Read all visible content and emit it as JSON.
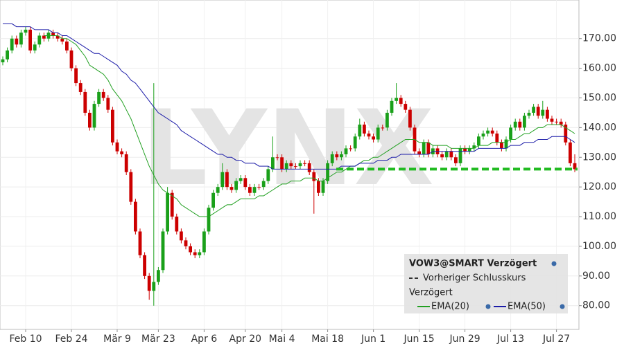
{
  "chart_data": {
    "type": "candlestick",
    "watermark": "LYNX",
    "categories": [
      null,
      null,
      null,
      null,
      null,
      "Feb 10",
      null,
      null,
      null,
      null,
      null,
      null,
      null,
      null,
      null,
      "Feb 24",
      null,
      null,
      null,
      null,
      null,
      null,
      null,
      null,
      null,
      "Mär 9",
      null,
      null,
      null,
      null,
      null,
      null,
      null,
      null,
      "Mär 23",
      null,
      null,
      null,
      null,
      null,
      null,
      null,
      null,
      null,
      "Apr 6",
      null,
      null,
      null,
      null,
      null,
      null,
      null,
      null,
      "Apr 20",
      null,
      null,
      null,
      null,
      null,
      null,
      null,
      "Mai 4",
      null,
      null,
      null,
      null,
      null,
      null,
      null,
      null,
      null,
      "Mai 18",
      null,
      null,
      null,
      null,
      null,
      null,
      null,
      null,
      null,
      "Jun 1",
      null,
      null,
      null,
      null,
      null,
      null,
      null,
      null,
      null,
      "Jun 15",
      null,
      null,
      null,
      null,
      null,
      null,
      null,
      null,
      null,
      "Jun 29",
      null,
      null,
      null,
      null,
      null,
      null,
      null,
      null,
      null,
      "Jul 13",
      null,
      null,
      null,
      null,
      null,
      null,
      null,
      null,
      null,
      "Jul 27",
      null,
      null,
      null,
      null
    ],
    "series": [
      {
        "name": "VOW3@SMART Verzögert",
        "up_color": "#1aa01a",
        "down_color": "#cc0000",
        "open": [
          162,
          163,
          166,
          170,
          168,
          172,
          173,
          166,
          168,
          171,
          170,
          172,
          171,
          170,
          169,
          166,
          160,
          155,
          152,
          145,
          140,
          148,
          152,
          150,
          146,
          135,
          132,
          131,
          125,
          115,
          105,
          97,
          90,
          85,
          88,
          92,
          105,
          118,
          110,
          105,
          102,
          100,
          98,
          97,
          98,
          105,
          113,
          118,
          120,
          125,
          120,
          119,
          122,
          123,
          120,
          118,
          120,
          120,
          122,
          126,
          130,
          130,
          126,
          128,
          127,
          127,
          128,
          128,
          125,
          122,
          118,
          122,
          128,
          131,
          130,
          131,
          133,
          133,
          137,
          141,
          138,
          137,
          136,
          140,
          140,
          145,
          149,
          150,
          148,
          146,
          140,
          132,
          131,
          135,
          131,
          133,
          131,
          130,
          132,
          130,
          128,
          133,
          132,
          133,
          134,
          137,
          138,
          139,
          138,
          135,
          133,
          136,
          140,
          142,
          140,
          144,
          145,
          147,
          144,
          146,
          143,
          142,
          142,
          141,
          135,
          128
        ],
        "high": [
          164,
          167,
          171,
          171,
          173,
          174,
          174,
          169,
          172,
          172,
          173,
          173,
          172,
          171,
          170,
          167,
          161,
          156,
          153,
          146,
          149,
          153,
          153,
          151,
          147,
          136,
          133,
          132,
          126,
          116,
          106,
          98,
          91,
          155,
          93,
          106,
          120,
          119,
          111,
          106,
          103,
          101,
          99,
          99,
          106,
          114,
          119,
          121,
          128,
          126,
          121,
          123,
          124,
          124,
          121,
          121,
          121,
          123,
          127,
          137,
          131,
          131,
          129,
          129,
          128,
          129,
          129,
          129,
          126,
          123,
          123,
          129,
          132,
          132,
          132,
          134,
          134,
          138,
          143,
          142,
          139,
          138,
          141,
          141,
          146,
          150,
          155,
          151,
          149,
          147,
          141,
          133,
          136,
          136,
          134,
          134,
          132,
          133,
          133,
          131,
          134,
          134,
          134,
          135,
          138,
          139,
          140,
          140,
          139,
          136,
          137,
          141,
          143,
          143,
          145,
          146,
          148,
          148,
          149,
          147,
          144,
          143,
          143,
          142,
          136,
          131
        ],
        "low": [
          161,
          162,
          165,
          167,
          167,
          171,
          165,
          165,
          167,
          169,
          169,
          170,
          169,
          168,
          165,
          159,
          154,
          151,
          144,
          139,
          139,
          147,
          149,
          145,
          134,
          131,
          130,
          124,
          114,
          104,
          96,
          89,
          82,
          80,
          87,
          91,
          104,
          109,
          104,
          101,
          99,
          97,
          96,
          96,
          97,
          104,
          112,
          117,
          119,
          119,
          118,
          118,
          121,
          119,
          117,
          117,
          119,
          119,
          121,
          125,
          129,
          125,
          125,
          126,
          126,
          126,
          127,
          124,
          111,
          117,
          117,
          121,
          127,
          129,
          129,
          130,
          132,
          132,
          136,
          137,
          136,
          135,
          135,
          139,
          139,
          144,
          148,
          147,
          145,
          139,
          131,
          130,
          130,
          130,
          130,
          130,
          129,
          129,
          129,
          127,
          127,
          131,
          131,
          132,
          133,
          136,
          137,
          137,
          134,
          132,
          132,
          135,
          139,
          139,
          139,
          143,
          144,
          143,
          143,
          142,
          141,
          141,
          140,
          134,
          127,
          125
        ],
        "close": [
          163,
          166,
          170,
          168,
          172,
          173,
          166,
          168,
          171,
          170,
          172,
          171,
          170,
          169,
          166,
          160,
          155,
          152,
          145,
          140,
          148,
          152,
          150,
          146,
          135,
          132,
          131,
          125,
          115,
          105,
          97,
          90,
          85,
          88,
          92,
          105,
          118,
          110,
          105,
          102,
          100,
          98,
          97,
          98,
          105,
          113,
          118,
          120,
          125,
          120,
          119,
          122,
          123,
          120,
          118,
          120,
          120,
          122,
          126,
          130,
          130,
          126,
          128,
          127,
          127,
          128,
          128,
          125,
          122,
          118,
          122,
          128,
          131,
          130,
          131,
          133,
          133,
          137,
          141,
          138,
          137,
          136,
          140,
          140,
          145,
          149,
          150,
          148,
          146,
          140,
          132,
          131,
          135,
          131,
          133,
          131,
          130,
          132,
          130,
          128,
          133,
          132,
          133,
          134,
          137,
          138,
          139,
          138,
          135,
          133,
          136,
          140,
          142,
          140,
          144,
          145,
          147,
          144,
          146,
          143,
          142,
          142,
          141,
          135,
          128,
          126
        ]
      },
      {
        "name": "EMA(20)",
        "color": "#22a022",
        "values": [
          null,
          null,
          null,
          null,
          null,
          null,
          null,
          null,
          null,
          171,
          171,
          171,
          171,
          170,
          170,
          169,
          168,
          166,
          164,
          161,
          160,
          159,
          158,
          156,
          153,
          151,
          149,
          146,
          143,
          139,
          135,
          131,
          127,
          124,
          121,
          119,
          118,
          117,
          116,
          114,
          113,
          112,
          111,
          110,
          110,
          110,
          111,
          112,
          113,
          114,
          114,
          115,
          116,
          116,
          116,
          116,
          117,
          117,
          118,
          119,
          120,
          121,
          121,
          122,
          122,
          122,
          123,
          123,
          123,
          122,
          122,
          123,
          124,
          125,
          125,
          126,
          127,
          127,
          128,
          129,
          129,
          130,
          130,
          131,
          132,
          133,
          134,
          135,
          136,
          136,
          136,
          135,
          135,
          135,
          134,
          134,
          134,
          134,
          133,
          133,
          133,
          133,
          133,
          133,
          134,
          134,
          134,
          135,
          135,
          135,
          135,
          136,
          136,
          137,
          138,
          138,
          139,
          140,
          140,
          141,
          141,
          141,
          141,
          140,
          139,
          138
        ]
      },
      {
        "name": "EMA(50)",
        "color": "#1c1ca8",
        "values": [
          175,
          175,
          175,
          174,
          174,
          174,
          174,
          173,
          173,
          173,
          173,
          172,
          172,
          171,
          171,
          170,
          169,
          168,
          167,
          166,
          165,
          165,
          164,
          163,
          162,
          161,
          159,
          158,
          156,
          155,
          153,
          151,
          149,
          147,
          145,
          144,
          143,
          142,
          141,
          139,
          138,
          137,
          136,
          135,
          134,
          133,
          132,
          131,
          131,
          130,
          130,
          129,
          129,
          128,
          128,
          128,
          127,
          127,
          127,
          126,
          126,
          126,
          126,
          126,
          126,
          126,
          126,
          126,
          126,
          126,
          126,
          126,
          126,
          126,
          127,
          127,
          127,
          127,
          128,
          128,
          128,
          128,
          129,
          129,
          129,
          130,
          130,
          131,
          131,
          131,
          131,
          131,
          131,
          131,
          132,
          132,
          132,
          132,
          132,
          132,
          132,
          132,
          132,
          132,
          133,
          133,
          133,
          133,
          133,
          133,
          133,
          134,
          134,
          134,
          135,
          135,
          135,
          136,
          136,
          136,
          137,
          137,
          137,
          137,
          136,
          135
        ]
      }
    ],
    "reference_line": {
      "name": "Vorheriger Schlusskurs",
      "value": 126,
      "color": "#22bb22"
    },
    "legend_subtitle": "Verzögert",
    "legend": "lower right",
    "grid": true,
    "ylim": [
      72,
      183
    ],
    "yticks": [
      {
        "value": 80,
        "label": "80.00"
      },
      {
        "value": 90,
        "label": "90.00"
      },
      {
        "value": 100,
        "label": "100.00"
      },
      {
        "value": 110,
        "label": "110.00"
      },
      {
        "value": 120,
        "label": "120.00"
      },
      {
        "value": 130,
        "label": "130.00"
      },
      {
        "value": 140,
        "label": "140.00"
      },
      {
        "value": 150,
        "label": "150.00"
      },
      {
        "value": 160,
        "label": "160.00"
      },
      {
        "value": 170,
        "label": "170.00"
      }
    ]
  }
}
